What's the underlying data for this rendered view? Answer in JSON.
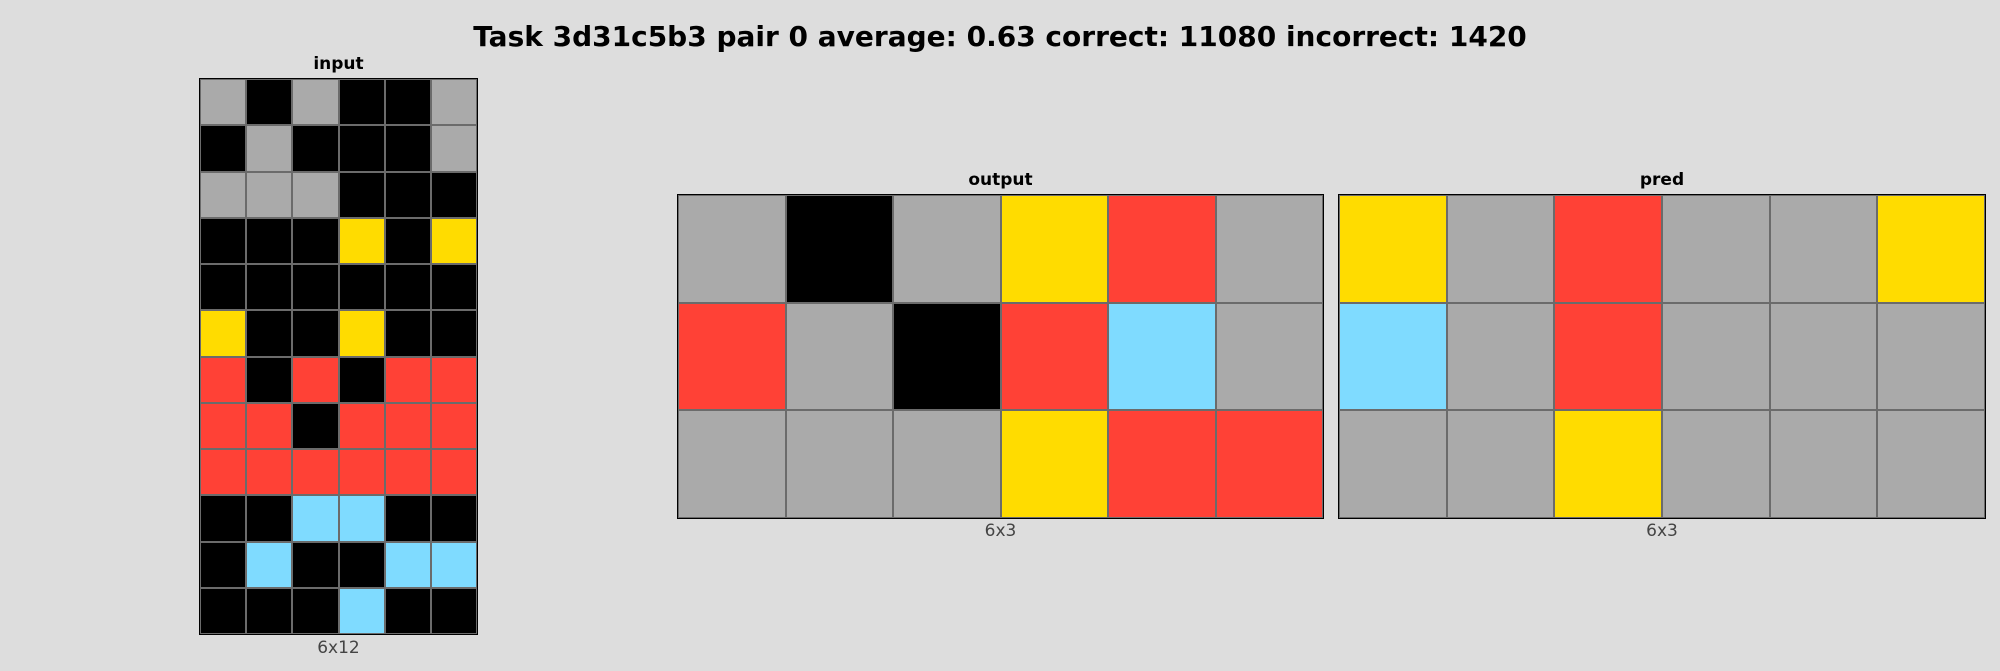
{
  "title": "Task 3d31c5b3 pair 0 average: 0.63 correct: 11080 incorrect: 1420",
  "palette": {
    "0": "#000000",
    "2": "#ff4136",
    "4": "#ffdc00",
    "5": "#aaaaaa",
    "8": "#7fdbff"
  },
  "panels": {
    "input": {
      "title": "input",
      "dims": "6x12",
      "cells": [
        [
          5,
          0,
          5,
          0,
          0,
          5
        ],
        [
          0,
          5,
          0,
          0,
          0,
          5
        ],
        [
          5,
          5,
          5,
          0,
          0,
          0
        ],
        [
          0,
          0,
          0,
          4,
          0,
          4
        ],
        [
          0,
          0,
          0,
          0,
          0,
          0
        ],
        [
          4,
          0,
          0,
          4,
          0,
          0
        ],
        [
          2,
          0,
          2,
          0,
          2,
          2
        ],
        [
          2,
          2,
          0,
          2,
          2,
          2
        ],
        [
          2,
          2,
          2,
          2,
          2,
          2
        ],
        [
          0,
          0,
          8,
          8,
          0,
          0
        ],
        [
          0,
          8,
          0,
          0,
          8,
          8
        ],
        [
          0,
          0,
          0,
          8,
          0,
          0
        ]
      ]
    },
    "output": {
      "title": "output",
      "dims": "6x3",
      "cells": [
        [
          5,
          0,
          5,
          4,
          2,
          5
        ],
        [
          2,
          5,
          0,
          2,
          8,
          5
        ],
        [
          5,
          5,
          5,
          4,
          2,
          2
        ]
      ]
    },
    "pred": {
      "title": "pred",
      "dims": "6x3",
      "cells": [
        [
          4,
          5,
          2,
          5,
          5,
          4
        ],
        [
          8,
          5,
          2,
          5,
          5,
          5
        ],
        [
          5,
          5,
          4,
          5,
          5,
          5
        ]
      ]
    }
  }
}
